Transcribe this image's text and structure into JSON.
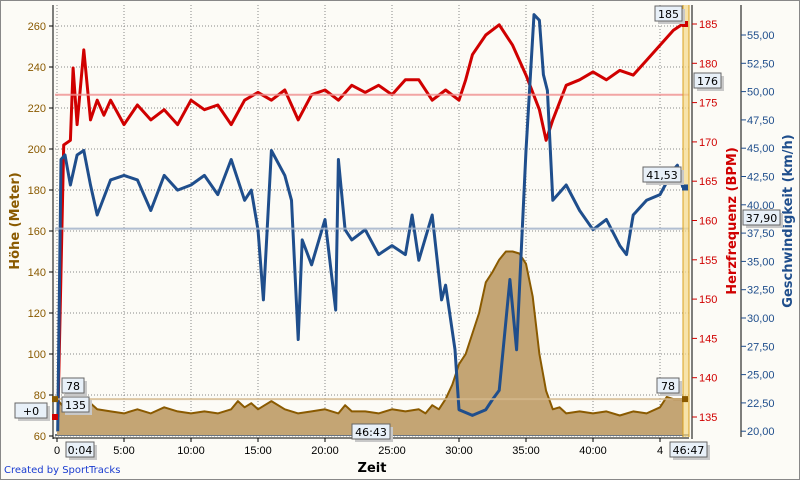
{
  "chart_data": {
    "type": "line",
    "xlabel": "Zeit",
    "x_ticks": [
      "0",
      "5:00",
      "10:00",
      "15:00",
      "20:00",
      "25:00",
      "30:00",
      "35:00",
      "40:00",
      "4"
    ],
    "x_range_minutes": [
      0,
      46.78
    ],
    "grid": true,
    "axes": {
      "altitude": {
        "label": "Höhe (Meter)",
        "ticks": [
          "60",
          "80",
          "100",
          "120",
          "140",
          "160",
          "180",
          "200",
          "220",
          "240",
          "260"
        ],
        "range": [
          60,
          260
        ],
        "color": "#8a5a00"
      },
      "heart_rate": {
        "label": "Herzfrequenz (BPM)",
        "ticks": [
          "135",
          "140",
          "145",
          "150",
          "155",
          "160",
          "165",
          "170",
          "175",
          "180",
          "185"
        ],
        "range": [
          133,
          186
        ],
        "color": "#d00000"
      },
      "speed": {
        "label": "Geschwindigkeit (km/h)",
        "ticks": [
          "20,00",
          "22,50",
          "25,00",
          "27,50",
          "30,00",
          "32,50",
          "35,00",
          "37,50",
          "40,00",
          "42,50",
          "45,00",
          "47,50",
          "50,00",
          "52,50",
          "55,00"
        ],
        "range": [
          19.5,
          57
        ],
        "color": "#1f4e8c"
      }
    },
    "series": [
      {
        "axis": "altitude",
        "style": "area",
        "color": "#8a5a00",
        "fill": "#c4a574",
        "points": [
          [
            0,
            78
          ],
          [
            0.5,
            74
          ],
          [
            1,
            72
          ],
          [
            2,
            72
          ],
          [
            2.5,
            76
          ],
          [
            3,
            73
          ],
          [
            4,
            72
          ],
          [
            5,
            71
          ],
          [
            6,
            73
          ],
          [
            7,
            71
          ],
          [
            8,
            74
          ],
          [
            9,
            72
          ],
          [
            10,
            71
          ],
          [
            11,
            72
          ],
          [
            12,
            71
          ],
          [
            13,
            73
          ],
          [
            13.5,
            77
          ],
          [
            14,
            74
          ],
          [
            14.5,
            76
          ],
          [
            15,
            73
          ],
          [
            15.5,
            75
          ],
          [
            16,
            77
          ],
          [
            17,
            73
          ],
          [
            18,
            71
          ],
          [
            19,
            72
          ],
          [
            20,
            73
          ],
          [
            21,
            71
          ],
          [
            21.5,
            75
          ],
          [
            22,
            72
          ],
          [
            23,
            72
          ],
          [
            24,
            71
          ],
          [
            25,
            73
          ],
          [
            26,
            72
          ],
          [
            27,
            73
          ],
          [
            27.5,
            71
          ],
          [
            28,
            75
          ],
          [
            28.5,
            73
          ],
          [
            29,
            78
          ],
          [
            29.5,
            85
          ],
          [
            30,
            95
          ],
          [
            30.5,
            100
          ],
          [
            31,
            110
          ],
          [
            31.5,
            120
          ],
          [
            32,
            135
          ],
          [
            32.5,
            140
          ],
          [
            33,
            146
          ],
          [
            33.5,
            150
          ],
          [
            34,
            150
          ],
          [
            34.5,
            149
          ],
          [
            35,
            144
          ],
          [
            35.5,
            128
          ],
          [
            36,
            100
          ],
          [
            36.5,
            82
          ],
          [
            37,
            73
          ],
          [
            37.5,
            74
          ],
          [
            38,
            71
          ],
          [
            39,
            72
          ],
          [
            40,
            71
          ],
          [
            41,
            72
          ],
          [
            42,
            70
          ],
          [
            43,
            72
          ],
          [
            44,
            71
          ],
          [
            45,
            74
          ],
          [
            45.5,
            79
          ],
          [
            46,
            78
          ],
          [
            46.7,
            78
          ]
        ]
      },
      {
        "axis": "heart_rate",
        "style": "line",
        "color": "#d00000",
        "points": [
          [
            0.07,
            135
          ],
          [
            0.5,
            169.6
          ],
          [
            1,
            170.2
          ],
          [
            1.2,
            179.4
          ],
          [
            1.5,
            172.2
          ],
          [
            2,
            181.7
          ],
          [
            2.5,
            172.8
          ],
          [
            3,
            175.3
          ],
          [
            3.5,
            173.4
          ],
          [
            4,
            175.3
          ],
          [
            5,
            172.2
          ],
          [
            6,
            174.7
          ],
          [
            7,
            172.8
          ],
          [
            8,
            174.1
          ],
          [
            9,
            172.2
          ],
          [
            10,
            175.3
          ],
          [
            11,
            174.1
          ],
          [
            12,
            174.7
          ],
          [
            13,
            172.2
          ],
          [
            14,
            175.3
          ],
          [
            15,
            176.3
          ],
          [
            16,
            175.3
          ],
          [
            17,
            176.6
          ],
          [
            18,
            172.8
          ],
          [
            19,
            176.0
          ],
          [
            20,
            176.6
          ],
          [
            21,
            175.3
          ],
          [
            22,
            177.2
          ],
          [
            23,
            176.3
          ],
          [
            24,
            177.2
          ],
          [
            25,
            176.0
          ],
          [
            26,
            177.9
          ],
          [
            27,
            177.9
          ],
          [
            28,
            175.3
          ],
          [
            29,
            176.6
          ],
          [
            30,
            175.3
          ],
          [
            30.5,
            177.9
          ],
          [
            31,
            181.1
          ],
          [
            32,
            183.6
          ],
          [
            33,
            184.9
          ],
          [
            34,
            182.3
          ],
          [
            35,
            178.5
          ],
          [
            36,
            174.1
          ],
          [
            36.5,
            170.2
          ],
          [
            37,
            172.8
          ],
          [
            38,
            177.2
          ],
          [
            39,
            177.9
          ],
          [
            40,
            178.9
          ],
          [
            41,
            177.9
          ],
          [
            42,
            179.1
          ],
          [
            43,
            178.5
          ],
          [
            44,
            180.4
          ],
          [
            45,
            182.3
          ],
          [
            46,
            184.2
          ],
          [
            46.7,
            185
          ]
        ]
      },
      {
        "axis": "speed",
        "style": "line",
        "color": "#1f4e8c",
        "points": [
          [
            0.05,
            20.0
          ],
          [
            0.3,
            44.0
          ],
          [
            0.6,
            44.4
          ],
          [
            1,
            41.75
          ],
          [
            1.5,
            44.4
          ],
          [
            2,
            44.8
          ],
          [
            2.5,
            41.75
          ],
          [
            3,
            39.1
          ],
          [
            4,
            42.2
          ],
          [
            5,
            42.6
          ],
          [
            6,
            42.2
          ],
          [
            7,
            39.5
          ],
          [
            8,
            42.6
          ],
          [
            9,
            41.3
          ],
          [
            10,
            41.75
          ],
          [
            11,
            42.6
          ],
          [
            12,
            40.9
          ],
          [
            13,
            44.0
          ],
          [
            14,
            40.4
          ],
          [
            14.5,
            41.3
          ],
          [
            15,
            37.8
          ],
          [
            15.4,
            31.6
          ],
          [
            16,
            44.8
          ],
          [
            17,
            42.6
          ],
          [
            17.5,
            40.4
          ],
          [
            18,
            28.1
          ],
          [
            18.3,
            36.9
          ],
          [
            19,
            34.7
          ],
          [
            20,
            38.7
          ],
          [
            20.8,
            30.7
          ],
          [
            21,
            44.0
          ],
          [
            21.5,
            37.8
          ],
          [
            22,
            36.9
          ],
          [
            23,
            37.8
          ],
          [
            24,
            35.6
          ],
          [
            25,
            36.4
          ],
          [
            26,
            35.6
          ],
          [
            26.5,
            39.1
          ],
          [
            27,
            35.1
          ],
          [
            28,
            39.1
          ],
          [
            28.7,
            31.6
          ],
          [
            29,
            32.9
          ],
          [
            29.7,
            27.2
          ],
          [
            30,
            21.9
          ],
          [
            31,
            21.4
          ],
          [
            32,
            21.9
          ],
          [
            32.5,
            22.8
          ],
          [
            33,
            23.6
          ],
          [
            33.8,
            33.4
          ],
          [
            34.3,
            27.2
          ],
          [
            35,
            44.8
          ],
          [
            35.6,
            56.8
          ],
          [
            36,
            56.3
          ],
          [
            36.3,
            51.5
          ],
          [
            36.6,
            50.1
          ],
          [
            37,
            40.4
          ],
          [
            38,
            41.75
          ],
          [
            39,
            39.5
          ],
          [
            40,
            37.8
          ],
          [
            41,
            38.7
          ],
          [
            42,
            36.4
          ],
          [
            42.5,
            35.6
          ],
          [
            43,
            39.1
          ],
          [
            44,
            40.4
          ],
          [
            45,
            40.9
          ],
          [
            45.6,
            42.2
          ],
          [
            46,
            43.1
          ],
          [
            46.3,
            43.5
          ],
          [
            46.7,
            41.53
          ]
        ]
      }
    ],
    "reference_lines": [
      {
        "axis": "heart_rate",
        "value": 176,
        "label": "176",
        "color": "#f09090"
      },
      {
        "axis": "speed",
        "value": 37.9,
        "label": "37,90",
        "color": "#9fb0c8"
      },
      {
        "axis": "altitude",
        "value": 78,
        "label": "78",
        "color": "#d4b88c"
      }
    ],
    "markers": {
      "hr_end": "185",
      "speed_end": "41,53",
      "alt_start": "78",
      "alt_end": "78",
      "alt_offset": "+0",
      "hr_start": "135",
      "sel_start": "0:04",
      "sel_length": "46:43",
      "sel_end": "46:47"
    }
  },
  "footer": {
    "credit": "Created by SportTracks"
  }
}
